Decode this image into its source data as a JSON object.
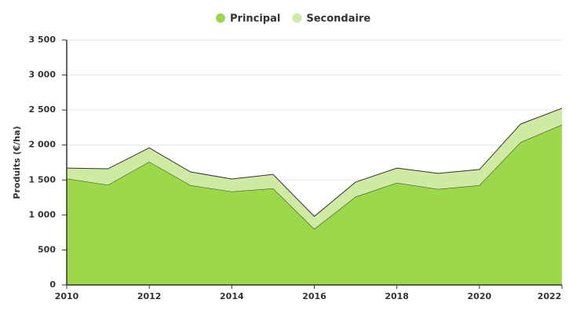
{
  "chart_data": {
    "type": "stacked_area",
    "y_label": "Produits (€/ha)",
    "x": [
      2010,
      2011,
      2012,
      2013,
      2014,
      2015,
      2016,
      2017,
      2018,
      2019,
      2020,
      2021,
      2022
    ],
    "series": [
      {
        "name": "Principal",
        "color": "#9bd84a",
        "values": [
          1520,
          1430,
          1760,
          1425,
          1335,
          1380,
          800,
          1260,
          1460,
          1370,
          1425,
          2040,
          2290
        ]
      },
      {
        "name": "Secondaire",
        "color": "#cfeaa3",
        "values": [
          150,
          230,
          200,
          190,
          180,
          200,
          180,
          210,
          210,
          225,
          225,
          260,
          235
        ]
      }
    ],
    "xlim": [
      2010,
      2022
    ],
    "xticks": [
      2010,
      2012,
      2014,
      2016,
      2018,
      2020,
      2022
    ],
    "ylim": [
      0,
      3500
    ],
    "yticks": [
      0,
      500,
      {
        "value": 1000,
        "label": "1 000"
      },
      {
        "value": 1500,
        "label": "1 500"
      },
      {
        "value": 2000,
        "label": "2 000"
      },
      {
        "value": 2500,
        "label": "2 500"
      },
      {
        "value": 3000,
        "label": "3 000"
      },
      {
        "value": 3500,
        "label": "3 500"
      }
    ],
    "grid": true,
    "legend": "top"
  }
}
